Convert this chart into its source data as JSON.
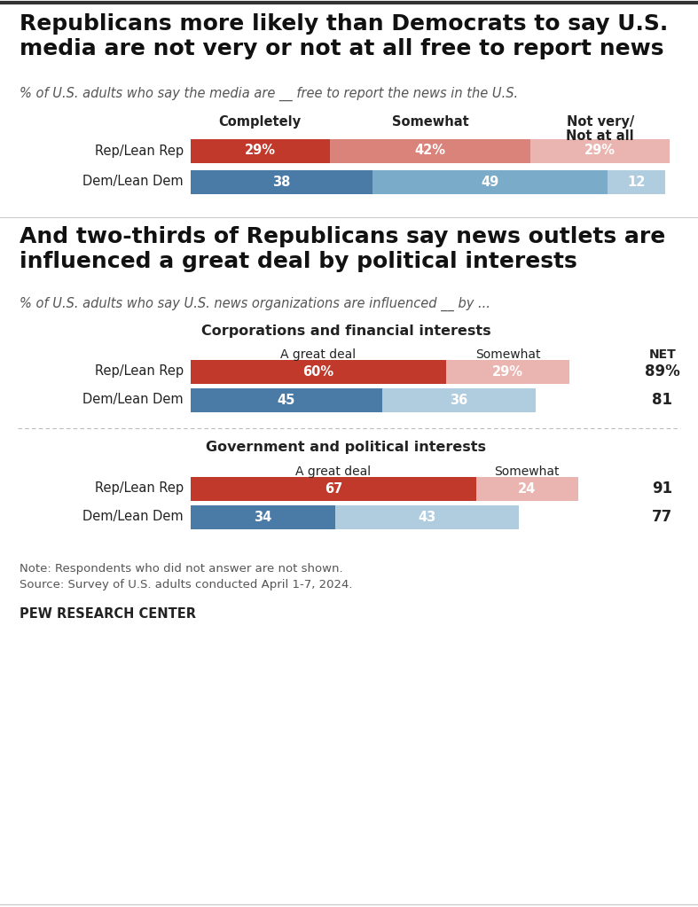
{
  "title1": "Republicans more likely than Democrats to say U.S.\nmedia are not very or not at all free to report news",
  "subtitle1": "% of U.S. adults who say the media are __ free to report the news in the U.S.",
  "title2": "And two-thirds of Republicans say news outlets are\ninfluenced a great deal by political interests",
  "subtitle2": "% of U.S. adults who say U.S. news organizations are influenced __ by ...",
  "chart1": {
    "col_headers": [
      "Completely",
      "Somewhat",
      "Not very/\nNot at all"
    ],
    "rows": [
      {
        "label": "Rep/Lean Rep",
        "values": [
          29,
          42,
          29
        ],
        "colors": [
          "#c0392b",
          "#d9837a",
          "#eab5b0"
        ],
        "labels": [
          "29%",
          "42%",
          "29%"
        ]
      },
      {
        "label": "Dem/Lean Dem",
        "values": [
          38,
          49,
          12
        ],
        "colors": [
          "#4a7ba7",
          "#7aacca",
          "#b0cde0"
        ],
        "labels": [
          "38",
          "49",
          "12"
        ]
      }
    ]
  },
  "chart2_title": "Corporations and financial interests",
  "chart2": {
    "col_headers": [
      "A great deal",
      "Somewhat"
    ],
    "rows": [
      {
        "label": "Rep/Lean Rep",
        "values": [
          60,
          29
        ],
        "colors": [
          "#c0392b",
          "#eab5b0"
        ],
        "labels": [
          "60%",
          "29%"
        ],
        "net": "89%"
      },
      {
        "label": "Dem/Lean Dem",
        "values": [
          45,
          36
        ],
        "colors": [
          "#4a7ba7",
          "#b0cde0"
        ],
        "labels": [
          "45",
          "36"
        ],
        "net": "81"
      }
    ]
  },
  "chart3_title": "Government and political interests",
  "chart3": {
    "col_headers": [
      "A great deal",
      "Somewhat"
    ],
    "rows": [
      {
        "label": "Rep/Lean Rep",
        "values": [
          67,
          24
        ],
        "colors": [
          "#c0392b",
          "#eab5b0"
        ],
        "labels": [
          "67",
          "24"
        ],
        "net": "91"
      },
      {
        "label": "Dem/Lean Dem",
        "values": [
          34,
          43
        ],
        "colors": [
          "#4a7ba7",
          "#b0cde0"
        ],
        "labels": [
          "34",
          "43"
        ],
        "net": "77"
      }
    ]
  },
  "note": "Note: Respondents who did not answer are not shown.\nSource: Survey of U.S. adults conducted April 1-7, 2024.",
  "brand": "PEW RESEARCH CENTER",
  "bg_color": "#ffffff"
}
